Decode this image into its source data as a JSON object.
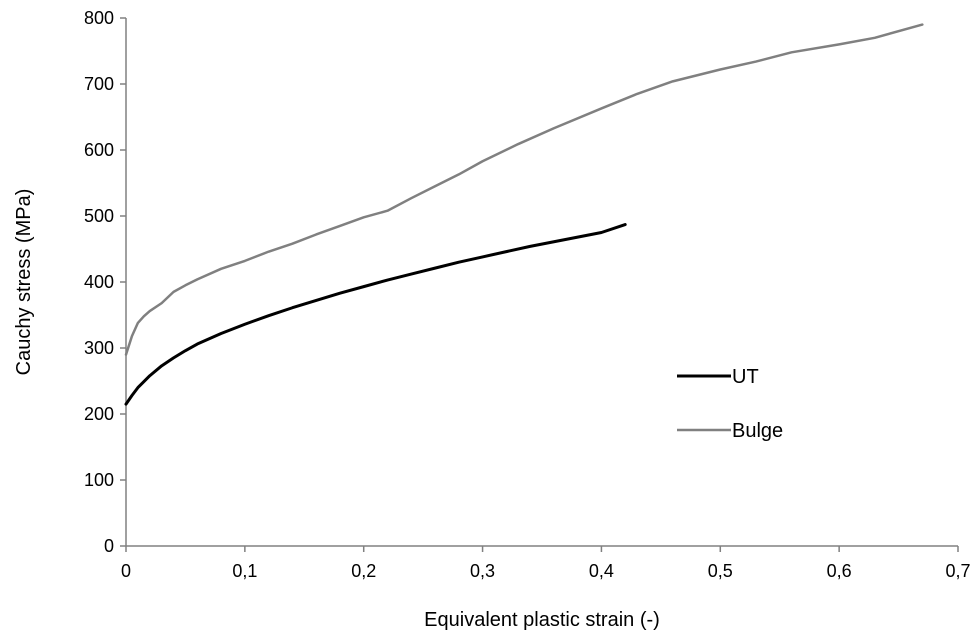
{
  "chart_data": {
    "type": "line",
    "title": "",
    "xlabel": "Equivalent plastic strain (-)",
    "ylabel": "Cauchy stress (MPa)",
    "xlim": [
      0,
      0.7
    ],
    "ylim": [
      0,
      800
    ],
    "x_ticks": [
      "0",
      "0,1",
      "0,2",
      "0,3",
      "0,4",
      "0,5",
      "0,6",
      "0,7"
    ],
    "y_ticks": [
      "0",
      "100",
      "200",
      "300",
      "400",
      "500",
      "600",
      "700",
      "800"
    ],
    "grid": false,
    "legend_position": "right",
    "series": [
      {
        "name": "UT",
        "color": "#000000",
        "points": [
          [
            0,
            215
          ],
          [
            0.005,
            228
          ],
          [
            0.01,
            240
          ],
          [
            0.02,
            258
          ],
          [
            0.03,
            273
          ],
          [
            0.04,
            285
          ],
          [
            0.05,
            296
          ],
          [
            0.06,
            306
          ],
          [
            0.08,
            322
          ],
          [
            0.1,
            336
          ],
          [
            0.12,
            349
          ],
          [
            0.14,
            361
          ],
          [
            0.16,
            372
          ],
          [
            0.18,
            383
          ],
          [
            0.2,
            393
          ],
          [
            0.22,
            403
          ],
          [
            0.24,
            412
          ],
          [
            0.26,
            421
          ],
          [
            0.28,
            430
          ],
          [
            0.3,
            438
          ],
          [
            0.32,
            446
          ],
          [
            0.34,
            454
          ],
          [
            0.36,
            461
          ],
          [
            0.38,
            468
          ],
          [
            0.4,
            475
          ],
          [
            0.42,
            487
          ]
        ]
      },
      {
        "name": "Bulge",
        "color": "#808080",
        "points": [
          [
            0,
            290
          ],
          [
            0.005,
            318
          ],
          [
            0.01,
            338
          ],
          [
            0.015,
            348
          ],
          [
            0.02,
            356
          ],
          [
            0.03,
            368
          ],
          [
            0.04,
            385
          ],
          [
            0.05,
            395
          ],
          [
            0.06,
            404
          ],
          [
            0.08,
            420
          ],
          [
            0.1,
            432
          ],
          [
            0.12,
            446
          ],
          [
            0.14,
            458
          ],
          [
            0.16,
            472
          ],
          [
            0.18,
            485
          ],
          [
            0.2,
            498
          ],
          [
            0.22,
            508
          ],
          [
            0.24,
            527
          ],
          [
            0.26,
            545
          ],
          [
            0.28,
            563
          ],
          [
            0.3,
            583
          ],
          [
            0.33,
            609
          ],
          [
            0.36,
            633
          ],
          [
            0.4,
            663
          ],
          [
            0.43,
            685
          ],
          [
            0.46,
            704
          ],
          [
            0.5,
            722
          ],
          [
            0.53,
            734
          ],
          [
            0.56,
            748
          ],
          [
            0.6,
            760
          ],
          [
            0.63,
            770
          ],
          [
            0.67,
            790
          ]
        ]
      }
    ]
  }
}
